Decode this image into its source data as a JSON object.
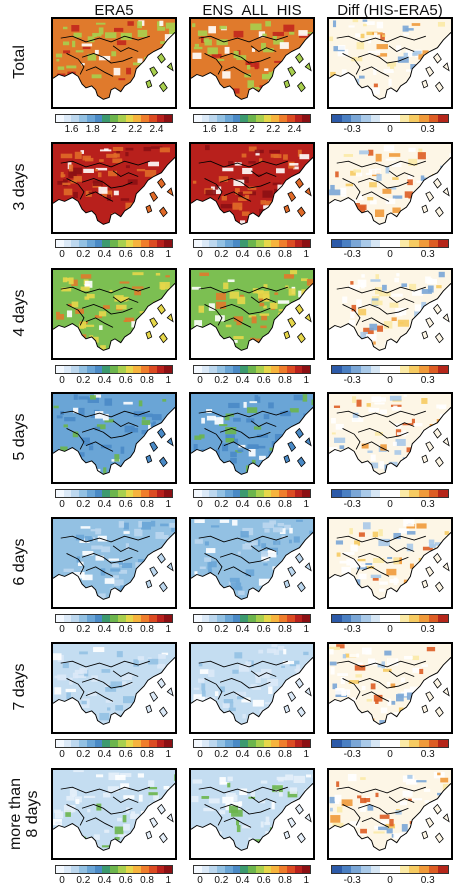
{
  "columns": [
    "ERA5",
    "ENS_ALL_HIS",
    "Diff (HIS-ERA5)"
  ],
  "rows": [
    {
      "label": "Total",
      "ticks": [
        "1.6",
        "1.8",
        "2",
        "2.2",
        "2.4"
      ],
      "diff_ticks": [
        "-0.3",
        "0",
        "0.3"
      ]
    },
    {
      "label": "3 days",
      "ticks": [
        "0",
        "0.2",
        "0.4",
        "0.6",
        "0.8",
        "1"
      ],
      "diff_ticks": [
        "-0.3",
        "0",
        "0.3"
      ]
    },
    {
      "label": "4 days",
      "ticks": [
        "0",
        "0.2",
        "0.4",
        "0.6",
        "0.8",
        "1"
      ],
      "diff_ticks": [
        "-0.3",
        "0",
        "0.3"
      ]
    },
    {
      "label": "5 days",
      "ticks": [
        "0",
        "0.2",
        "0.4",
        "0.6",
        "0.8",
        "1"
      ],
      "diff_ticks": [
        "-0.3",
        "0",
        "0.3"
      ]
    },
    {
      "label": "6 days",
      "ticks": [
        "0",
        "0.2",
        "0.4",
        "0.6",
        "0.8",
        "1"
      ],
      "diff_ticks": [
        "-0.3",
        "0",
        "0.3"
      ]
    },
    {
      "label": "7 days",
      "ticks": [
        "0",
        "0.2",
        "0.4",
        "0.6",
        "0.8",
        "1"
      ],
      "diff_ticks": [
        "-0.3",
        "0",
        "0.3"
      ]
    },
    {
      "label": "more than 8 days",
      "label_line1": "more than",
      "label_line2": "8 days",
      "ticks": [
        "0",
        "0.2",
        "0.4",
        "0.6",
        "0.8",
        "1"
      ],
      "diff_ticks": [
        "-0.3",
        "0",
        "0.3"
      ]
    }
  ],
  "colormaps": {
    "sequential": [
      "#f4f9ff",
      "#dbe9f7",
      "#bcd7ee",
      "#93c1e3",
      "#6aa5d6",
      "#4a8ac6",
      "#3c9a6f",
      "#6cb54d",
      "#a8cf4e",
      "#e6d74a",
      "#f6b33d",
      "#ef7d2c",
      "#dc4b22",
      "#b8201c",
      "#8c1014"
    ],
    "diverging": [
      "#2c5aa8",
      "#4a7fc2",
      "#7aa6d6",
      "#a9c9e8",
      "#d6e6f4",
      "#ffffff",
      "#ffffff",
      "#fbeaa6",
      "#f6cb62",
      "#f09a3a",
      "#dd5d24",
      "#b5261a"
    ]
  },
  "row_fill": [
    {
      "base": "#e07a2c",
      "alt": "#a8cf4e",
      "hot": "#c2271d"
    },
    {
      "base": "#b8201c",
      "alt": "#e06a28",
      "hot": "#8c1014"
    },
    {
      "base": "#7cbf52",
      "alt": "#e6d74a",
      "hot": "#e07a2c"
    },
    {
      "base": "#6aa5d6",
      "alt": "#4a8ac6",
      "hot": "#6cb54d"
    },
    {
      "base": "#93c1e3",
      "alt": "#bcd7ee",
      "hot": "#6aa5d6"
    },
    {
      "base": "#c4ddf1",
      "alt": "#dbe9f7",
      "hot": "#93c1e3"
    },
    {
      "base": "#c4ddf1",
      "alt": "#e6f0fa",
      "hot": "#6cb54d"
    }
  ]
}
